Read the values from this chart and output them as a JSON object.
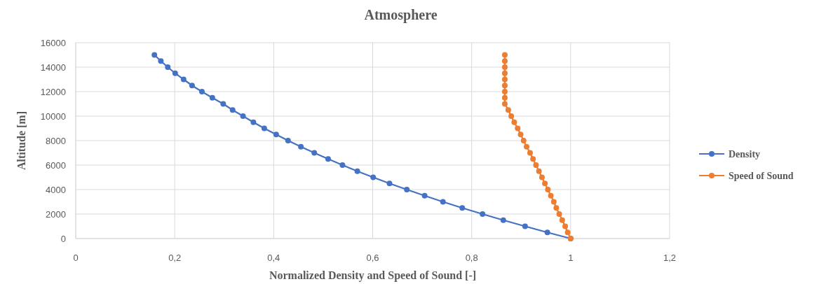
{
  "chart_data": {
    "type": "line",
    "title": "Atmosphere",
    "xlabel": "Normalized Density and Speed of Sound [-]",
    "ylabel": "Altitude  [m]",
    "xlim": [
      0,
      1.2
    ],
    "xticks": [
      0,
      {
        "value": 0.2,
        "label": "0,2"
      },
      {
        "value": 0.4,
        "label": "0,4"
      },
      {
        "value": 0.6,
        "label": "0,6"
      },
      {
        "value": 0.8,
        "label": "0,8"
      },
      1,
      {
        "value": 1.2,
        "label": "1,2"
      }
    ],
    "ylim": [
      0,
      16000
    ],
    "yticks": [
      0,
      2000,
      4000,
      6000,
      8000,
      10000,
      12000,
      14000,
      16000
    ],
    "grid": true,
    "legend": "right",
    "marker": "circle",
    "line_style": "solid",
    "series": [
      {
        "name": "Density",
        "color": "#4472c4",
        "x": [
          1,
          0.953,
          0.908,
          0.864,
          0.822,
          0.781,
          0.742,
          0.705,
          0.669,
          0.634,
          0.601,
          0.569,
          0.539,
          0.51,
          0.482,
          0.455,
          0.429,
          0.405,
          0.381,
          0.359,
          0.338,
          0.317,
          0.298,
          0.276,
          0.255,
          0.235,
          0.218,
          0.201,
          0.186,
          0.172,
          0.159
        ],
        "values": [
          0,
          500,
          1000,
          1500,
          2000,
          2500,
          3000,
          3500,
          4000,
          4500,
          5000,
          5500,
          6000,
          6500,
          7000,
          7500,
          8000,
          8500,
          9000,
          9500,
          10000,
          10500,
          11000,
          11500,
          12000,
          12500,
          13000,
          13500,
          14000,
          14500,
          15000
        ]
      },
      {
        "name": "Speed of Sound",
        "color": "#ed7d31",
        "x": [
          1,
          0.994,
          0.989,
          0.983,
          0.977,
          0.971,
          0.966,
          0.96,
          0.954,
          0.948,
          0.942,
          0.936,
          0.93,
          0.924,
          0.918,
          0.911,
          0.905,
          0.899,
          0.893,
          0.886,
          0.88,
          0.874,
          0.867,
          0.867,
          0.867,
          0.867,
          0.867,
          0.867,
          0.867,
          0.867,
          0.867
        ],
        "values": [
          0,
          500,
          1000,
          1500,
          2000,
          2500,
          3000,
          3500,
          4000,
          4500,
          5000,
          5500,
          6000,
          6500,
          7000,
          7500,
          8000,
          8500,
          9000,
          9500,
          10000,
          10500,
          11000,
          11500,
          12000,
          12500,
          13000,
          13500,
          14000,
          14500,
          15000
        ]
      }
    ]
  }
}
